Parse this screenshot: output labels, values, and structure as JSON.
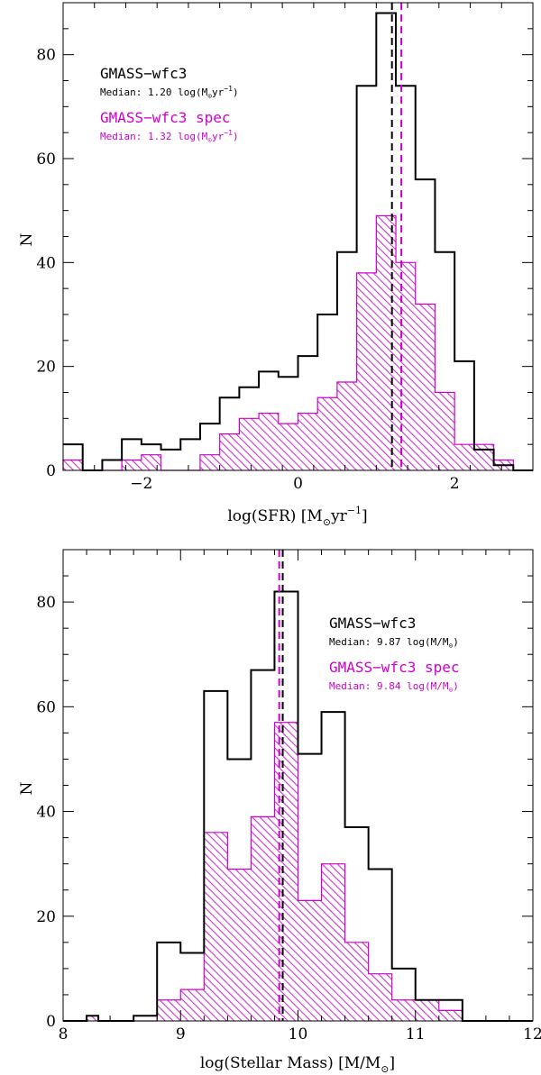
{
  "colors": {
    "all": "#000000",
    "spec": "#cc00cc",
    "hatch": "#cc33cc"
  },
  "chart_data": [
    {
      "type": "histogram",
      "xlim": [
        -3,
        3
      ],
      "ylim": [
        0,
        90
      ],
      "xticks": [
        -2,
        0,
        2
      ],
      "xtick_labels": [
        "−2",
        "0",
        "2"
      ],
      "yticks": [
        0,
        20,
        40,
        60,
        80
      ],
      "ytick_labels": [
        "0",
        "20",
        "40",
        "60",
        "80"
      ],
      "xlabel": "log(SFR) [M",
      "xlabel_sub": "⊙",
      "xlabel_tail": "yr",
      "xlabel_sup": "−1",
      "xlabel_close": "]",
      "ylabel": "N",
      "bin_edges": [
        -3.0,
        -2.75,
        -2.5,
        -2.25,
        -2.0,
        -1.75,
        -1.5,
        -1.25,
        -1.0,
        -0.75,
        -0.5,
        -0.25,
        0.0,
        0.25,
        0.5,
        0.75,
        1.0,
        1.25,
        1.5,
        1.75,
        2.0,
        2.25,
        2.5,
        2.75,
        3.0
      ],
      "series": [
        {
          "name": "GMASS−wfc3",
          "style": "outline",
          "values": [
            5,
            0,
            2,
            6,
            5,
            4,
            6,
            9,
            14,
            16,
            19,
            18,
            22,
            30,
            42,
            74,
            88,
            74,
            56,
            42,
            21,
            4,
            1,
            0
          ]
        },
        {
          "name": "GMASS−wfc3 spec",
          "style": "hatched",
          "values": [
            2,
            0,
            0,
            2,
            3,
            0,
            0,
            3,
            7,
            10,
            11,
            9,
            11,
            14,
            17,
            38,
            49,
            40,
            32,
            15,
            5,
            5,
            2,
            0
          ]
        }
      ],
      "medians": [
        {
          "series": "GMASS−wfc3",
          "value": 1.2
        },
        {
          "series": "GMASS−wfc3 spec",
          "value": 1.32
        }
      ],
      "legend": {
        "placement": "top-left",
        "all_title": "GMASS−wfc3",
        "all_median": "Median: 1.20 log(M",
        "all_median_sub": "⊙",
        "all_median_tail": "yr",
        "all_median_sup": "−1",
        "all_median_close": ")",
        "spec_title": "GMASS−wfc3 spec",
        "spec_median": "Median: 1.32 log(M",
        "spec_median_sub": "⊙",
        "spec_median_tail": "yr",
        "spec_median_sup": "−1",
        "spec_median_close": ")"
      }
    },
    {
      "type": "histogram",
      "xlim": [
        8,
        12
      ],
      "ylim": [
        0,
        90
      ],
      "xticks": [
        8,
        9,
        10,
        11,
        12
      ],
      "xtick_labels": [
        "8",
        "9",
        "10",
        "11",
        "12"
      ],
      "yticks": [
        0,
        20,
        40,
        60,
        80
      ],
      "ytick_labels": [
        "0",
        "20",
        "40",
        "60",
        "80"
      ],
      "xlabel": "log(Stellar Mass) [M/M",
      "xlabel_sub": "⊙",
      "xlabel_close": "]",
      "ylabel": "N",
      "bin_edges": [
        8.0,
        8.1,
        8.2,
        8.3,
        8.4,
        8.5,
        8.6,
        8.7,
        8.8,
        8.9,
        9.0,
        9.1,
        9.2,
        9.3,
        9.4,
        9.5,
        9.6,
        9.7,
        9.8,
        9.9,
        10.0,
        10.1,
        10.2,
        10.3,
        10.4,
        10.5,
        10.6,
        10.7,
        10.8,
        10.9,
        11.0,
        11.1,
        11.2,
        11.3,
        11.4,
        11.5,
        11.6,
        11.7,
        11.8,
        11.9,
        12.0
      ],
      "series": [
        {
          "name": "GMASS−wfc3",
          "style": "outline",
          "values": [
            0,
            0,
            1,
            0,
            0,
            0,
            1,
            1,
            15,
            15,
            13,
            13,
            63,
            63,
            50,
            50,
            67,
            67,
            82,
            82,
            51,
            51,
            59,
            59,
            37,
            37,
            29,
            29,
            10,
            10,
            4,
            4,
            4,
            4,
            0,
            0,
            0,
            0,
            0,
            0
          ]
        },
        {
          "name": "GMASS−wfc3 spec",
          "style": "hatched",
          "values": [
            0,
            0,
            1,
            0,
            0,
            0,
            0,
            0,
            4,
            4,
            6,
            6,
            36,
            36,
            29,
            29,
            39,
            39,
            57,
            57,
            23,
            23,
            30,
            30,
            15,
            15,
            9,
            9,
            4,
            4,
            4,
            4,
            2,
            2,
            0,
            0,
            0,
            0,
            0,
            0
          ]
        }
      ],
      "medians": [
        {
          "series": "GMASS−wfc3",
          "value": 9.87
        },
        {
          "series": "GMASS−wfc3 spec",
          "value": 9.84
        }
      ],
      "legend": {
        "placement": "top-right",
        "all_title": "GMASS−wfc3",
        "all_median": "Median: 9.87 log(M/M",
        "all_median_sub": "⊙",
        "all_median_close": ")",
        "spec_title": "GMASS−wfc3 spec",
        "spec_median": "Median: 9.84 log(M/M",
        "spec_median_sub": "⊙",
        "spec_median_close": ")"
      }
    }
  ]
}
